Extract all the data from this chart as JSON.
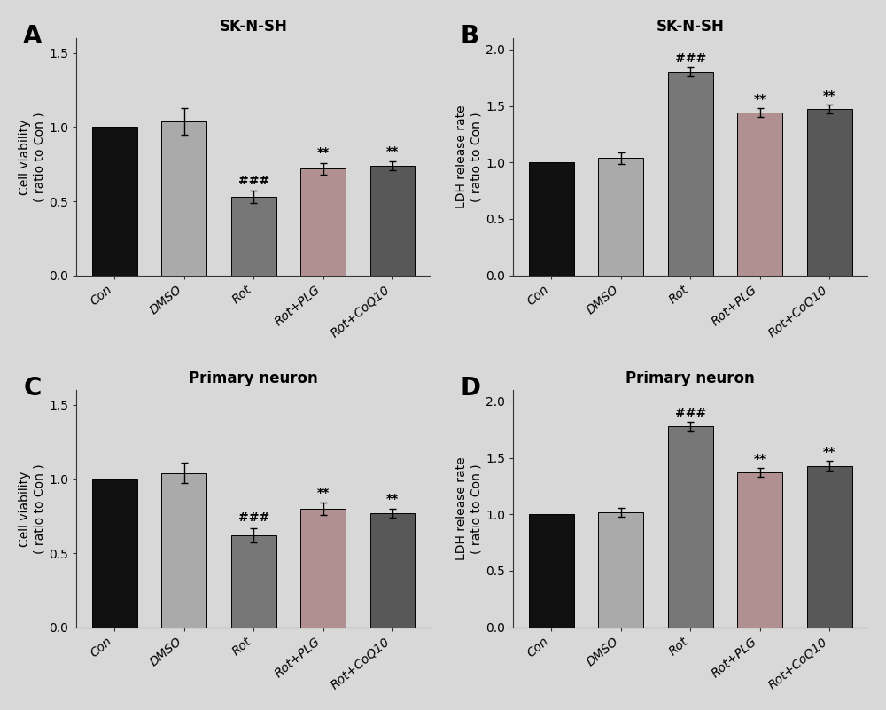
{
  "panels": [
    {
      "label": "A",
      "title": "SK-N-SH",
      "ylabel": "Cell viability\n( ratio to Con )",
      "ylim": [
        0,
        1.6
      ],
      "yticks": [
        0.0,
        0.5,
        1.0,
        1.5
      ],
      "categories": [
        "Con",
        "DMSO",
        "Rot",
        "Rot+PLG",
        "Rot+CoQ10"
      ],
      "values": [
        1.0,
        1.04,
        0.53,
        0.72,
        0.74
      ],
      "errors": [
        0.0,
        0.09,
        0.04,
        0.04,
        0.03
      ],
      "colors": [
        "#111111",
        "#aaaaaa",
        "#777777",
        "#b09090",
        "#585858"
      ],
      "annotations": [
        "",
        "",
        "###",
        "**",
        "**"
      ]
    },
    {
      "label": "B",
      "title": "SK-N-SH",
      "ylabel": "LDH release rate\n( ratio to Con )",
      "ylim": [
        0,
        2.1
      ],
      "yticks": [
        0.0,
        0.5,
        1.0,
        1.5,
        2.0
      ],
      "categories": [
        "Con",
        "DMSO",
        "Rot",
        "Rot+PLG",
        "Rot+CoQ10"
      ],
      "values": [
        1.0,
        1.04,
        1.8,
        1.44,
        1.47
      ],
      "errors": [
        0.0,
        0.05,
        0.04,
        0.04,
        0.04
      ],
      "colors": [
        "#111111",
        "#aaaaaa",
        "#777777",
        "#b09090",
        "#585858"
      ],
      "annotations": [
        "",
        "",
        "###",
        "**",
        "**"
      ]
    },
    {
      "label": "C",
      "title": "Primary neuron",
      "ylabel": "Cell viability\n( ratio to Con )",
      "ylim": [
        0,
        1.6
      ],
      "yticks": [
        0.0,
        0.5,
        1.0,
        1.5
      ],
      "categories": [
        "Con",
        "DMSO",
        "Rot",
        "Rot+PLG",
        "Rot+CoQ10"
      ],
      "values": [
        1.0,
        1.04,
        0.62,
        0.8,
        0.77
      ],
      "errors": [
        0.0,
        0.07,
        0.05,
        0.04,
        0.03
      ],
      "colors": [
        "#111111",
        "#aaaaaa",
        "#777777",
        "#b09090",
        "#585858"
      ],
      "annotations": [
        "",
        "",
        "###",
        "**",
        "**"
      ]
    },
    {
      "label": "D",
      "title": "Primary neuron",
      "ylabel": "LDH release rate\n( ratio to Con )",
      "ylim": [
        0,
        2.1
      ],
      "yticks": [
        0.0,
        0.5,
        1.0,
        1.5,
        2.0
      ],
      "categories": [
        "Con",
        "DMSO",
        "Rot",
        "Rot+PLG",
        "Rot+CoQ10"
      ],
      "values": [
        1.0,
        1.02,
        1.78,
        1.37,
        1.43
      ],
      "errors": [
        0.0,
        0.04,
        0.04,
        0.04,
        0.04
      ],
      "colors": [
        "#111111",
        "#aaaaaa",
        "#777777",
        "#b09090",
        "#585858"
      ],
      "annotations": [
        "",
        "",
        "###",
        "**",
        "**"
      ]
    }
  ],
  "background_color": "#d8d8d8",
  "bar_width": 0.65,
  "label_fontsize": 20,
  "title_fontsize": 12,
  "tick_fontsize": 10,
  "ylabel_fontsize": 10,
  "annot_fontsize": 10,
  "xticklabel_fontsize": 10
}
